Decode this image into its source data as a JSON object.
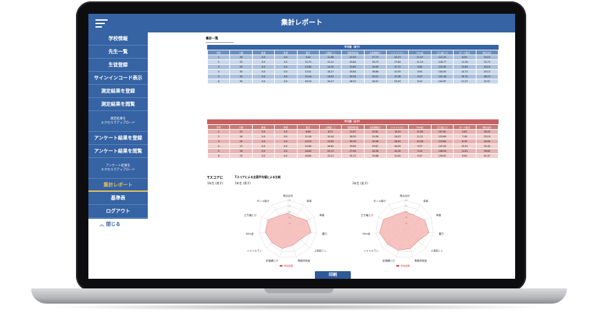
{
  "app": {
    "title": "集計レポート"
  },
  "sidebar": {
    "items": [
      {
        "label": "学校情報"
      },
      {
        "label": "先生一覧"
      },
      {
        "label": "生徒登録"
      },
      {
        "label": "サインインコード表示"
      },
      {
        "label": "測定結果を登録"
      },
      {
        "label": "測定結果を閲覧"
      },
      {
        "label": "測定結果を",
        "label2": "エクセルでアップロード"
      },
      {
        "label": "アンケート結果を登録"
      },
      {
        "label": "アンケート結果を閲覧"
      },
      {
        "label": "アンケート結果を",
        "label2": "エクセルでアップロード"
      },
      {
        "label": "集計レポート"
      },
      {
        "label": "基準表"
      },
      {
        "label": "ログアウト"
      }
    ],
    "close_label": "閉じる"
  },
  "summary": {
    "tab_label": "集計一覧"
  },
  "tables": {
    "columns": [
      "学年",
      "人数",
      "身長",
      "体重",
      "握力",
      "上体起こし",
      "長座体前屈",
      "反復横跳び",
      "シャトルラン",
      "50m走",
      "立ち幅とび",
      "ボール投げ",
      "得点合計"
    ],
    "male": {
      "caption": "平均値（男子）",
      "rows": [
        [
          "1",
          "26",
          "0.0",
          "0.0",
          "9.42",
          "11.08",
          "22.50",
          "27.73",
          "23.27",
          "11.57",
          "112.15",
          "8.50",
          "25.15"
        ],
        [
          "2",
          "33",
          "0.0",
          "0.0",
          "10.75",
          "12.12",
          "29.64",
          "30.73",
          "27.64",
          "11.15",
          "118.77",
          "11.26",
          "32.73"
        ],
        [
          "3",
          "20",
          "0.0",
          "0.0",
          "12.84",
          "14.35",
          "23.80",
          "34.90",
          "37.72",
          "9.82",
          "123.45",
          "13.60",
          "40.10"
        ],
        [
          "4",
          "30",
          "0.0",
          "0.0",
          "13.01",
          "18.27",
          "30.84",
          "36.86",
          "41.55",
          "9.91",
          "140.05",
          "14.73",
          "45.13"
        ],
        [
          "5",
          "34",
          "0.0",
          "0.0",
          "15.44",
          "19.03",
          "30.54",
          "42.21",
          "47.28",
          "9.47",
          "151.18",
          "19.74",
          "48.74"
        ],
        [
          "6",
          "30",
          "0.0",
          "0.0",
          "18.30",
          "19.27",
          "28.31",
          "40.97",
          "53.43",
          "8.42",
          "142.67",
          "21.27",
          "52.57"
        ]
      ]
    },
    "female": {
      "caption": "平均値（女子）",
      "rows": [
        [
          "1",
          "23",
          "0.0",
          "0.0",
          "8.86",
          "8.01",
          "21.87",
          "25.61",
          "19.43",
          "11.85",
          "107.61",
          "4.81",
          "28.43"
        ],
        [
          "2",
          "16",
          "0.0",
          "0.0",
          "11.00",
          "10.44",
          "28.50",
          "24.36",
          "24.03",
          "11.21",
          "123.69",
          "7.49",
          "25.19"
        ],
        [
          "3",
          "20",
          "0.0",
          "0.0",
          "10.53",
          "13.05",
          "30.39",
          "32.96",
          "28.05",
          "10.56",
          "119.64",
          "8.39",
          "40.00"
        ],
        [
          "4",
          "13",
          "0.0",
          "0.0",
          "14.60",
          "16.62",
          "33.89",
          "29.87",
          "44.05",
          "9.57",
          "147.05",
          "13.25",
          "35.45"
        ],
        [
          "5",
          "16",
          "0.0",
          "0.0",
          "16.60",
          "20.13",
          "27.94",
          "40.36",
          "42.50",
          "9.32",
          "148.94",
          "11.81",
          "38.63"
        ],
        [
          "6",
          "15",
          "0.0",
          "0.0",
          "16.80",
          "15.21",
          "34.13",
          "33.86",
          "31.00",
          "9.07",
          "139.97",
          "9.90",
          "51.07"
        ]
      ]
    }
  },
  "tscore": {
    "title": "Tスコアに",
    "subtitle": "1年生 (男子)",
    "heading": "Tスコアによる全国平均値による比較",
    "male_label": "1年生 (男子)",
    "female_label": "1年生 (女子)",
    "axes": [
      "得点合計",
      "身長",
      "体重",
      "握力",
      "上体起こし",
      "長座体前屈",
      "反復横とび",
      "シャトルラン",
      "50m走",
      "立ち幅とび",
      "ボール投げ"
    ],
    "legend": "学校結果",
    "male_values": [
      0.55,
      0.5,
      0.72,
      0.8,
      0.55,
      0.58,
      0.7,
      0.72,
      0.78,
      0.76,
      0.55
    ],
    "female_values": [
      0.6,
      0.58,
      0.75,
      0.85,
      0.62,
      0.7,
      0.76,
      0.78,
      0.88,
      0.8,
      0.58
    ],
    "color": "#f4b8b6"
  },
  "print_label": "印刷"
}
